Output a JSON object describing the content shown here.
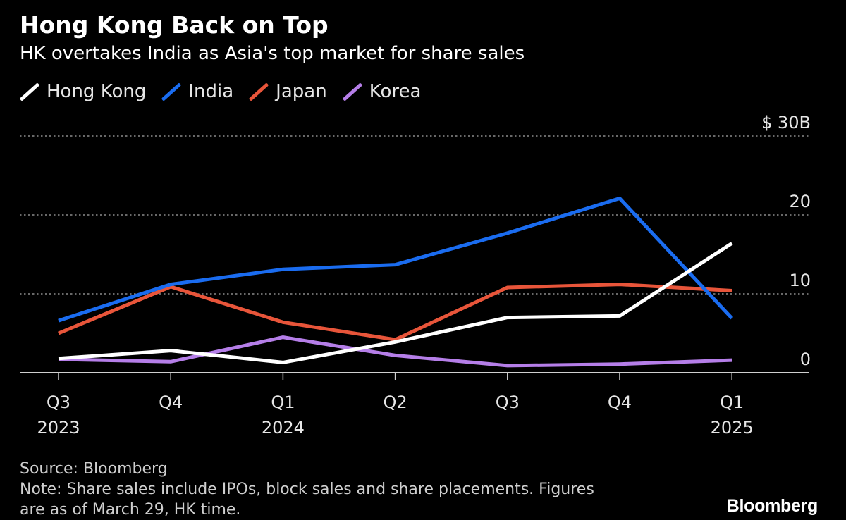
{
  "chart_data": {
    "type": "line",
    "title": "Hong Kong Back on Top",
    "subtitle": "HK overtakes India as Asia's top market for share sales",
    "x": [
      "Q3 2023",
      "Q4 2023",
      "Q1 2024",
      "Q2 2024",
      "Q3 2024",
      "Q4 2024",
      "Q1 2025"
    ],
    "x_ticks": [
      {
        "quarter": "Q3",
        "year": "2023"
      },
      {
        "quarter": "Q4",
        "year": ""
      },
      {
        "quarter": "Q1",
        "year": "2024"
      },
      {
        "quarter": "Q2",
        "year": ""
      },
      {
        "quarter": "Q3",
        "year": ""
      },
      {
        "quarter": "Q4",
        "year": ""
      },
      {
        "quarter": "Q1",
        "year": "2025"
      }
    ],
    "series": [
      {
        "name": "Hong Kong",
        "color": "#ffffff",
        "values": [
          1.8,
          2.8,
          1.3,
          3.9,
          7.0,
          7.2,
          16.4
        ]
      },
      {
        "name": "India",
        "color": "#1a6cf0",
        "values": [
          6.6,
          11.2,
          13.1,
          13.7,
          17.7,
          22.1,
          6.9
        ]
      },
      {
        "name": "Japan",
        "color": "#e8553a",
        "values": [
          5.0,
          10.9,
          6.4,
          4.2,
          10.8,
          11.2,
          10.4
        ]
      },
      {
        "name": "Korea",
        "color": "#b57ee8",
        "values": [
          1.7,
          1.4,
          4.5,
          2.2,
          0.9,
          1.1,
          1.6
        ]
      }
    ],
    "y_ticks": [
      {
        "value": 0,
        "label": "0"
      },
      {
        "value": 10,
        "label": "10"
      },
      {
        "value": 20,
        "label": "20"
      },
      {
        "value": 30,
        "label": "$ 30B"
      }
    ],
    "ylim": [
      0,
      30
    ],
    "xlabel": "",
    "ylabel": "",
    "grid": true,
    "legend": "top-left"
  },
  "footer": {
    "source": "Source: Bloomberg",
    "note_line1": "Note: Share sales include IPOs, block sales and share placements. Figures",
    "note_line2": "are as of March 29, HK time."
  },
  "brand": "Bloomberg"
}
